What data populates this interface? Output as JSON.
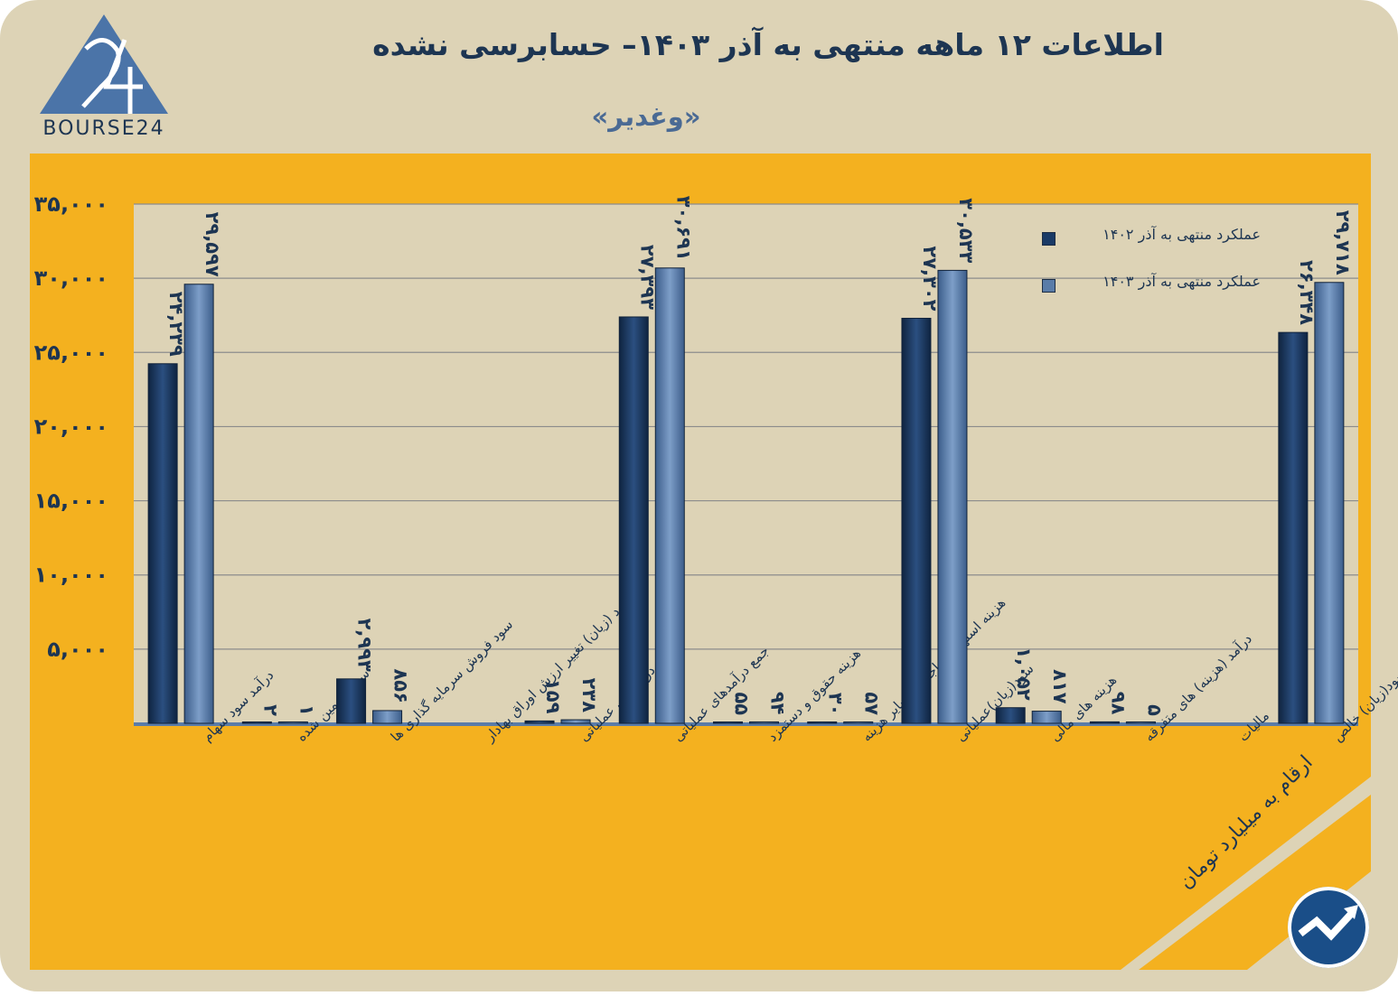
{
  "header": {
    "title": "اطلاعات ۱۲ ماهه منتهی به آذر  ۱۴۰۳– حسابرسی نشده",
    "subtitle": "«وغدیر»",
    "logo_text": "BOURSE24"
  },
  "note": {
    "unit": "ارقام به میلیارد تومان"
  },
  "colors": {
    "series1": "#1a3a66",
    "series2": "#5a7ca8",
    "plot_bg": "#f4b11f",
    "card_bg": "#ddd3b6",
    "title": "#1d3552"
  },
  "icons": {
    "badge": "trend-arrow-icon"
  },
  "chart_data": {
    "type": "bar",
    "categories": [
      "درآمد سود سهام",
      "سود تضمین شده",
      "سود فروش سرمایه گذاری ها",
      "سود (زیان) تغییر ارزش اوراق بهادار",
      "سایر درامدهای عملیاتی",
      "جمع درآمدهای عملیاتی",
      "هزینه حقوق و دستمزد",
      "هزینه استهلاک ، اجاره ، سایر هزینه",
      "سود(زیان)عملیاتی",
      "هزینه های مالی",
      "درآمد (هزینه) های متفرقه",
      "مالیات",
      "سود(زیان) خالص"
    ],
    "series": [
      {
        "name": "عملکرد منتهی به آذر ۱۴۰۲",
        "values": [
          24239,
          2,
          2993,
          0,
          159,
          27393,
          55,
          30,
          27302,
          1052,
          98,
          0,
          26348
        ],
        "labels": [
          "۲۴,۲۳۹",
          "۲",
          "۲,۹۹۳",
          "",
          "۱۵۹",
          "۲۷,۳۹۳",
          "۵۵",
          "۳۰",
          "۲۷,۳۰۲",
          "۱,۰۵۲",
          "۹۸",
          "",
          "۲۶,۳۴۸"
        ]
      },
      {
        "name": "عملکرد منتهی به آذر ۱۴۰۳",
        "values": [
          29597,
          1,
          856,
          0,
          238,
          30691,
          94,
          57,
          30533,
          817,
          5,
          0,
          29718
        ],
        "labels": [
          "۲۹,۵۹۷",
          "۱",
          "۸۵۶",
          "",
          "۲۳۸",
          "۳۰,۶۹۱",
          "۹۴",
          "۵۷",
          "۳۰,۵۳۳",
          "۸۱۷",
          "۵",
          "",
          "۲۹,۷۱۸"
        ]
      }
    ],
    "yticks": [
      "۵,۰۰۰",
      "۱۰,۰۰۰",
      "۱۵,۰۰۰",
      "۲۰,۰۰۰",
      "۲۵,۰۰۰",
      "۳۰,۰۰۰",
      "۳۵,۰۰۰"
    ],
    "ylim": [
      0,
      35000
    ],
    "grid": true,
    "legend": "top-right"
  }
}
